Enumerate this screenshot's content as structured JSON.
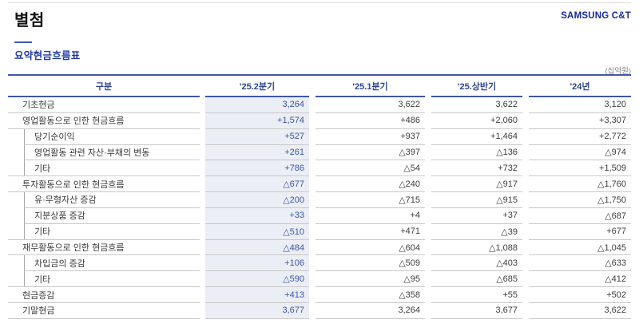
{
  "page": {
    "title": "별첨",
    "brand": "SAMSUNG C&T",
    "section_title": "요약현금흐름표",
    "unit_note": "(십억원)"
  },
  "table": {
    "columns": [
      "구분",
      "'25.2분기",
      "'25.1분기",
      "'25.상반기",
      "'24년"
    ],
    "highlighted_column": "'25.2분기",
    "rows": [
      {
        "label": "기초현금",
        "level": 0,
        "values": [
          "3,264",
          "3,622",
          "3,622",
          "3,120"
        ]
      },
      {
        "label": "영업활동으로 인한 현금흐름",
        "level": 0,
        "values": [
          "+1,574",
          "+486",
          "+2,060",
          "+3,307"
        ]
      },
      {
        "label": "당기순이익",
        "level": 1,
        "values": [
          "+527",
          "+937",
          "+1,464",
          "+2,772"
        ]
      },
      {
        "label": "영업활동 관련 자산·부채의 변동",
        "level": 1,
        "values": [
          "+261",
          "△397",
          "△136",
          "△974"
        ]
      },
      {
        "label": "기타",
        "level": 1,
        "values": [
          "+786",
          "△54",
          "+732",
          "+1,509"
        ]
      },
      {
        "label": "투자활동으로 인한 현금흐름",
        "level": 0,
        "values": [
          "△677",
          "△240",
          "△917",
          "△1,760"
        ]
      },
      {
        "label": "유·무형자산 증감",
        "level": 1,
        "values": [
          "△200",
          "△715",
          "△915",
          "△1,750"
        ]
      },
      {
        "label": "지분상품 증감",
        "level": 1,
        "values": [
          "+33",
          "+4",
          "+37",
          "△687"
        ]
      },
      {
        "label": "기타",
        "level": 1,
        "values": [
          "△510",
          "+471",
          "△39",
          "+677"
        ]
      },
      {
        "label": "재무활동으로 인한 현금흐름",
        "level": 0,
        "values": [
          "△484",
          "△604",
          "△1,088",
          "△1,045"
        ]
      },
      {
        "label": "차입금의 증감",
        "level": 1,
        "values": [
          "+106",
          "△509",
          "△403",
          "△633"
        ]
      },
      {
        "label": "기타",
        "level": 1,
        "values": [
          "△590",
          "△95",
          "△685",
          "△412"
        ]
      },
      {
        "label": "현금증감",
        "level": 0,
        "values": [
          "+413",
          "△358",
          "+55",
          "+502"
        ]
      },
      {
        "label": "기말현금",
        "level": 0,
        "values": [
          "3,677",
          "3,264",
          "3,677",
          "3,622"
        ]
      }
    ]
  },
  "colors": {
    "brand_blue": "#1428a0",
    "rule_blue": "#3f57a7",
    "header_text_blue": "#2f4496",
    "highlight_column_bg": "#eceef6",
    "highlight_value_text": "#3a55a8",
    "row_separator_gray": "#c9c9c9"
  }
}
